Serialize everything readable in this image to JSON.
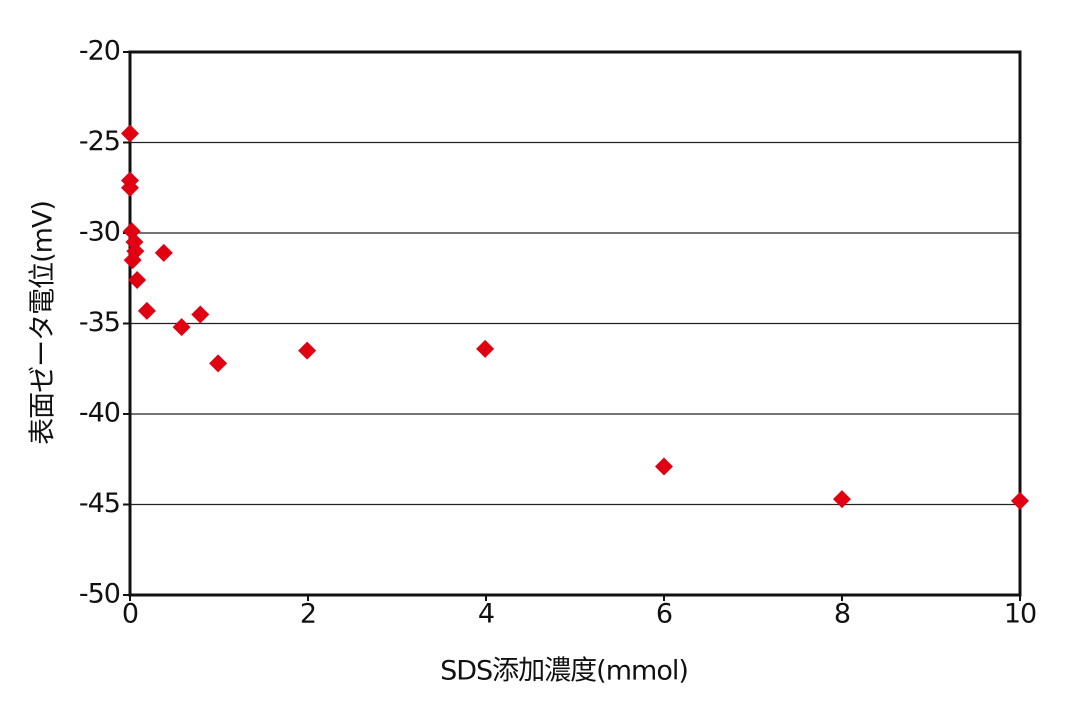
{
  "chart_data": {
    "type": "scatter",
    "x_label": "SDS添加濃度(mmol)",
    "y_label": "表面ゼータ電位(mV)",
    "x": [
      0,
      0,
      0,
      0.02,
      0.05,
      0.06,
      0.03,
      0.08,
      0.19,
      0.38,
      0.58,
      0.79,
      0.99,
      1.99,
      3.99,
      6,
      8,
      10
    ],
    "series": [
      {
        "color": "#e00012",
        "marker": "diamond",
        "values": [
          -24.5,
          -27.1,
          -27.5,
          -29.9,
          -30.5,
          -31.0,
          -31.5,
          -32.6,
          -34.3,
          -31.1,
          -35.2,
          -34.5,
          -37.2,
          -36.5,
          -36.4,
          -42.9,
          -44.7,
          -44.8
        ]
      }
    ],
    "xlim": [
      0,
      10
    ],
    "xticks": [
      0,
      2,
      4,
      6,
      8,
      10
    ],
    "ylim": [
      -50,
      -20
    ],
    "yticks": [
      -20,
      -25,
      -30,
      -35,
      -40,
      -45,
      -50
    ],
    "grid": true
  }
}
